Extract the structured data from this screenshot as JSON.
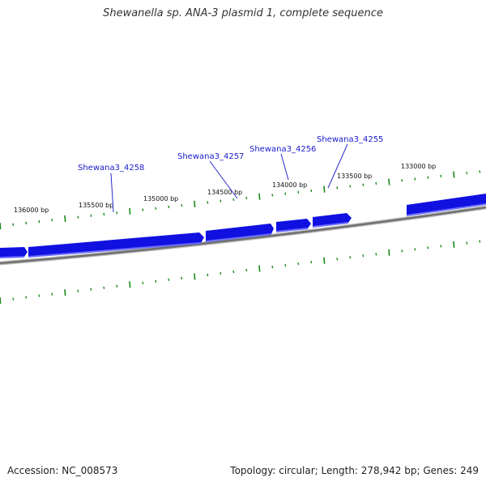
{
  "title": "Shewanella sp. ANA-3 plasmid 1, complete sequence",
  "footer": {
    "accession": "Accession: NC_008573",
    "stats": "Topology: circular; Length: 278,942 bp; Genes: 249"
  },
  "genes": [
    {
      "name": "Shewana3_4258"
    },
    {
      "name": "Shewana3_4257"
    },
    {
      "name": "Shewana3_4256"
    },
    {
      "name": "Shewana3_4255"
    }
  ],
  "bp_labels": [
    "136000 bp",
    "135500 bp",
    "135000 bp",
    "134500 bp",
    "134000 bp",
    "133500 bp",
    "133000 bp"
  ],
  "colors": {
    "gene": "#1010e0",
    "gene_shadow": "#5a5aff",
    "backbone": "#808080",
    "tick": "#1a8a1a",
    "label_line": "#2a2ad0"
  }
}
